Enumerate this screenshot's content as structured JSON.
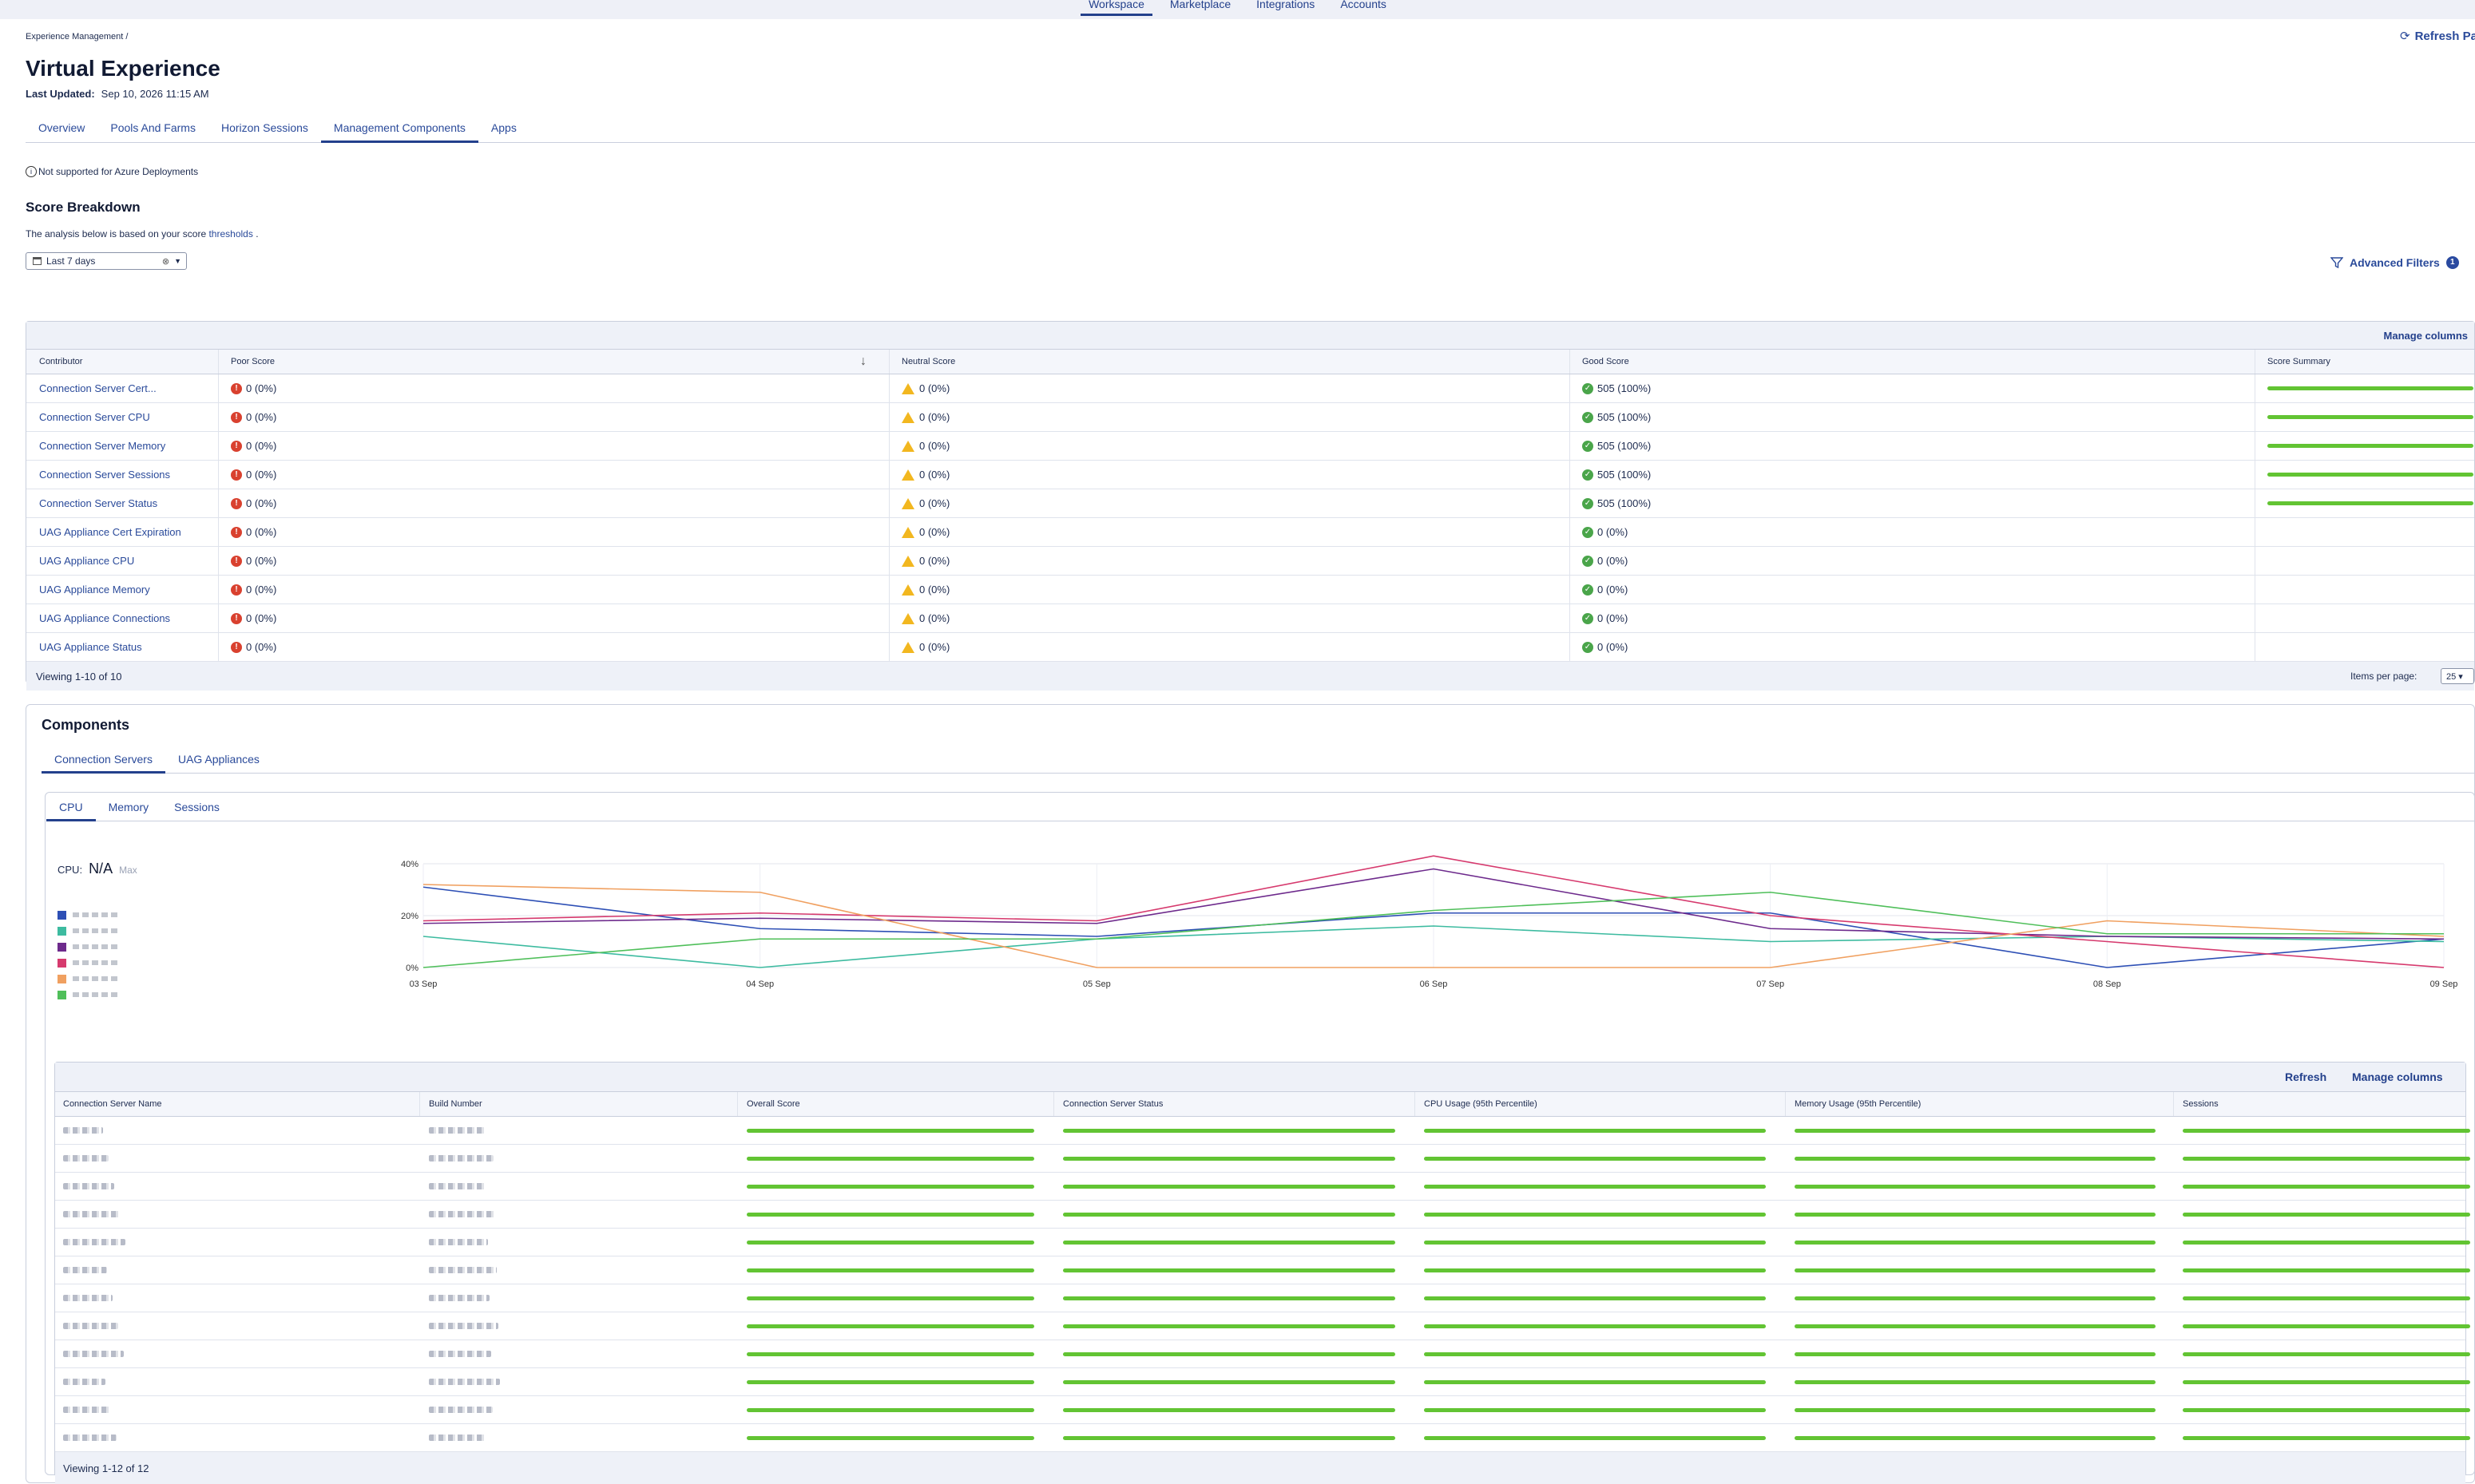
{
  "topnav": [
    "Workspace",
    "Marketplace",
    "Integrations",
    "Accounts"
  ],
  "breadcrumb": "Experience Management  /",
  "page_title": "Virtual Experience",
  "last_updated_label": "Last Updated:",
  "last_updated_value": "Sep 10, 2026 11:15 AM",
  "refresh_page": "Refresh Pag",
  "tabs": [
    "Overview",
    "Pools And Farms",
    "Horizon Sessions",
    "Management Components",
    "Apps"
  ],
  "notice": "Not supported for Azure Deployments",
  "score_breakdown": {
    "title": "Score Breakdown",
    "analysis_prefix": "The analysis below is based on your score",
    "analysis_link": "thresholds",
    "analysis_suffix": ".",
    "date_range": "Last 7 days",
    "advanced_filters": "Advanced Filters",
    "filter_count": "1",
    "manage_columns": "Manage columns",
    "columns": [
      "Contributor",
      "Poor Score",
      "Neutral Score",
      "Good Score",
      "Score Summary"
    ],
    "rows": [
      {
        "contributor": "Connection Server Cert...",
        "poor": "0 (0%)",
        "neutral": "0 (0%)",
        "good": "505 (100%)",
        "summary": 1
      },
      {
        "contributor": "Connection Server CPU",
        "poor": "0 (0%)",
        "neutral": "0 (0%)",
        "good": "505 (100%)",
        "summary": 1
      },
      {
        "contributor": "Connection Server Memory",
        "poor": "0 (0%)",
        "neutral": "0 (0%)",
        "good": "505 (100%)",
        "summary": 1
      },
      {
        "contributor": "Connection Server Sessions",
        "poor": "0 (0%)",
        "neutral": "0 (0%)",
        "good": "505 (100%)",
        "summary": 1
      },
      {
        "contributor": "Connection Server Status",
        "poor": "0 (0%)",
        "neutral": "0 (0%)",
        "good": "505 (100%)",
        "summary": 1
      },
      {
        "contributor": "UAG Appliance Cert Expiration",
        "poor": "0 (0%)",
        "neutral": "0 (0%)",
        "good": "0 (0%)",
        "summary": 0
      },
      {
        "contributor": "UAG Appliance CPU",
        "poor": "0 (0%)",
        "neutral": "0 (0%)",
        "good": "0 (0%)",
        "summary": 0
      },
      {
        "contributor": "UAG Appliance Memory",
        "poor": "0 (0%)",
        "neutral": "0 (0%)",
        "good": "0 (0%)",
        "summary": 0
      },
      {
        "contributor": "UAG Appliance Connections",
        "poor": "0 (0%)",
        "neutral": "0 (0%)",
        "good": "0 (0%)",
        "summary": 0
      },
      {
        "contributor": "UAG Appliance Status",
        "poor": "0 (0%)",
        "neutral": "0 (0%)",
        "good": "0 (0%)",
        "summary": 0
      }
    ],
    "viewing": "Viewing 1-10 of 10",
    "items_per_page_label": "Items per page:",
    "items_per_page": "25"
  },
  "components": {
    "title": "Components",
    "tabs": [
      "Connection Servers",
      "UAG Appliances"
    ],
    "metric_tabs": [
      "CPU",
      "Memory",
      "Sessions"
    ],
    "cpu_label": "CPU:",
    "cpu_value": "N/A",
    "cpu_suffix": "Max",
    "legend_colors": [
      "#2d4fb5",
      "#3dbba0",
      "#6d2a8c",
      "#d63a6e",
      "#f0a060",
      "#4fbf5a"
    ]
  },
  "chart_data": {
    "type": "line",
    "x": [
      "03 Sep",
      "04 Sep",
      "05 Sep",
      "06 Sep",
      "07 Sep",
      "08 Sep",
      "09 Sep"
    ],
    "y_ticks": [
      "0%",
      "20%",
      "40%"
    ],
    "ylim": [
      0,
      40
    ],
    "grid": true,
    "series": [
      {
        "color": "#2d4fb5",
        "values": [
          31,
          15,
          12,
          21,
          21,
          0,
          11
        ]
      },
      {
        "color": "#3dbba0",
        "values": [
          12,
          0,
          11,
          16,
          10,
          12,
          10
        ]
      },
      {
        "color": "#6d2a8c",
        "values": [
          17,
          19,
          17,
          38,
          15,
          12,
          11
        ]
      },
      {
        "color": "#d63a6e",
        "values": [
          18,
          21,
          18,
          43,
          20,
          10,
          0
        ]
      },
      {
        "color": "#f0a060",
        "values": [
          32,
          29,
          0,
          0,
          0,
          18,
          12
        ]
      },
      {
        "color": "#4fbf5a",
        "values": [
          0,
          11,
          11,
          22,
          29,
          13,
          13
        ]
      }
    ]
  },
  "servers_table": {
    "refresh": "Refresh",
    "manage_columns": "Manage columns",
    "columns": [
      "Connection Server Name",
      "Build Number",
      "Overall Score",
      "Connection Server Status",
      "CPU Usage (95th Percentile)",
      "Memory Usage (95th Percentile)",
      "Sessions"
    ],
    "row_count": 12,
    "viewing": "Viewing 1-12 of 12"
  }
}
